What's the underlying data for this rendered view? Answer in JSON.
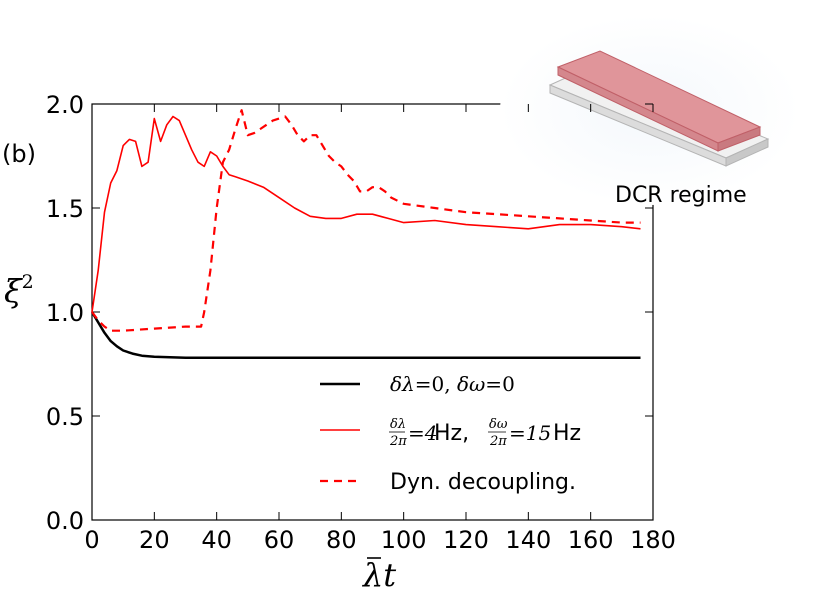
{
  "panel_label": "(b)",
  "inset": {
    "label": "DCR regime",
    "colors": {
      "top": "#e0959a",
      "top_edge": "#c06068",
      "base": "#eeeeee",
      "base_edge": "#b0b0b0"
    }
  },
  "chart_data": {
    "type": "line",
    "xlabel": "λ̄t",
    "ylabel": "ξ²",
    "xlim": [
      0,
      180
    ],
    "ylim": [
      0.0,
      2.0
    ],
    "x_ticks": [
      "0",
      "20",
      "40",
      "60",
      "80",
      "100",
      "120",
      "140",
      "160",
      "180"
    ],
    "y_ticks": [
      "0.0",
      "0.5",
      "1.0",
      "1.5",
      "2.0"
    ],
    "grid": false,
    "legend_position": "lower-right",
    "series": [
      {
        "name": "δλ=0, δω=0",
        "color": "#000000",
        "style": "solid",
        "x": [
          0,
          2,
          4,
          6,
          8,
          10,
          13,
          16,
          20,
          25,
          30,
          40,
          60,
          100,
          140,
          176
        ],
        "y": [
          1.0,
          0.95,
          0.9,
          0.86,
          0.835,
          0.815,
          0.8,
          0.79,
          0.785,
          0.782,
          0.78,
          0.78,
          0.78,
          0.78,
          0.78,
          0.78
        ]
      },
      {
        "name": "δλ/2π=4 Hz, δω/2π=15 Hz",
        "color": "#ff0000",
        "style": "solid",
        "x": [
          0,
          2,
          4,
          6,
          8,
          10,
          12,
          14,
          16,
          18,
          20,
          22,
          24,
          26,
          28,
          30,
          32,
          34,
          36,
          38,
          40,
          42,
          44,
          46,
          50,
          55,
          60,
          65,
          70,
          75,
          80,
          85,
          90,
          95,
          100,
          110,
          120,
          130,
          140,
          150,
          160,
          170,
          176
        ],
        "y": [
          1.0,
          1.2,
          1.48,
          1.62,
          1.68,
          1.8,
          1.83,
          1.82,
          1.7,
          1.72,
          1.93,
          1.82,
          1.9,
          1.94,
          1.92,
          1.85,
          1.78,
          1.72,
          1.7,
          1.77,
          1.75,
          1.7,
          1.66,
          1.65,
          1.63,
          1.6,
          1.55,
          1.5,
          1.46,
          1.45,
          1.45,
          1.47,
          1.47,
          1.45,
          1.43,
          1.44,
          1.42,
          1.41,
          1.4,
          1.42,
          1.42,
          1.41,
          1.4
        ]
      },
      {
        "name": "Dyn. decoupling.",
        "color": "#ff0000",
        "style": "dashed",
        "x": [
          0,
          2,
          4,
          6,
          10,
          20,
          30,
          35,
          36,
          38,
          40,
          42,
          44,
          46,
          48,
          50,
          52,
          54,
          56,
          58,
          60,
          62,
          64,
          66,
          68,
          70,
          72,
          74,
          76,
          78,
          80,
          82,
          84,
          86,
          88,
          90,
          92,
          94,
          96,
          100,
          110,
          120,
          130,
          140,
          150,
          160,
          170,
          176
        ],
        "y": [
          1.0,
          0.96,
          0.93,
          0.91,
          0.91,
          0.92,
          0.93,
          0.93,
          1.0,
          1.2,
          1.5,
          1.72,
          1.78,
          1.88,
          1.97,
          1.85,
          1.86,
          1.88,
          1.9,
          1.92,
          1.93,
          1.94,
          1.9,
          1.85,
          1.82,
          1.85,
          1.85,
          1.8,
          1.75,
          1.72,
          1.7,
          1.66,
          1.63,
          1.58,
          1.58,
          1.6,
          1.6,
          1.58,
          1.55,
          1.52,
          1.5,
          1.48,
          1.47,
          1.46,
          1.45,
          1.44,
          1.43,
          1.43
        ]
      }
    ]
  }
}
